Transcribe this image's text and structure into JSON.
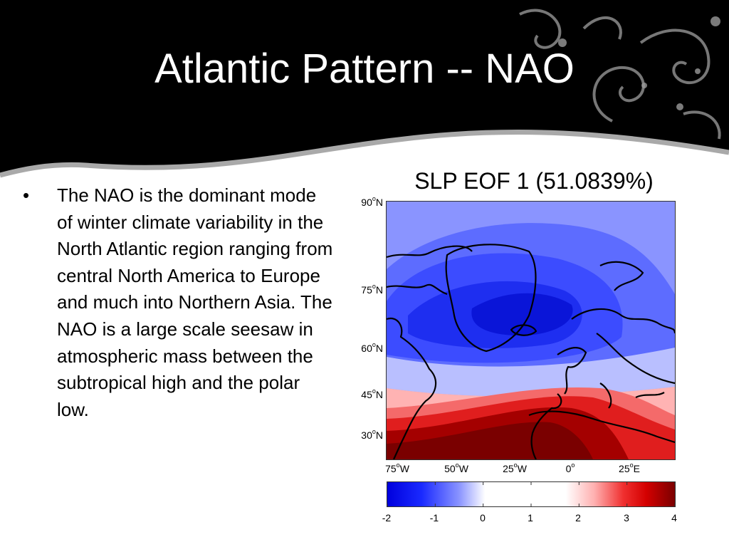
{
  "slide": {
    "title": "Atlantic Pattern -- NAO",
    "bullet_text": "The NAO is the dominant mode of winter climate variability in the North Atlantic region ranging from central North America to Europe and much into Northern Asia. The NAO is a large scale seesaw in atmospheric mass between the subtropical high and the polar low.",
    "bullet_marker": "•"
  },
  "map": {
    "title": "SLP EOF 1 (51.0839%)",
    "lat_labels": [
      {
        "deg": "90",
        "sup": "o",
        "hemi": "N"
      },
      {
        "deg": "75",
        "sup": "o",
        "hemi": "N"
      },
      {
        "deg": "60",
        "sup": "o",
        "hemi": "N"
      },
      {
        "deg": "45",
        "sup": "o",
        "hemi": "N"
      },
      {
        "deg": "30",
        "sup": "o",
        "hemi": "N"
      }
    ],
    "lon_labels": [
      {
        "deg": "75",
        "sup": "o",
        "hemi": "W"
      },
      {
        "deg": "50",
        "sup": "o",
        "hemi": "W"
      },
      {
        "deg": "25",
        "sup": "o",
        "hemi": "W"
      },
      {
        "deg": "0",
        "sup": "o",
        "hemi": ""
      },
      {
        "deg": "25",
        "sup": "o",
        "hemi": "E"
      }
    ],
    "colorbar_ticks": [
      "-2",
      "-1",
      "0",
      "1",
      "2",
      "3",
      "4"
    ],
    "colorbar_range": [
      -2,
      4
    ],
    "colors": {
      "low": "#0000dd",
      "mid": "#ffffff",
      "high": "#7a0000",
      "map_background": "#8a94ff",
      "coastline": "#000000"
    }
  }
}
